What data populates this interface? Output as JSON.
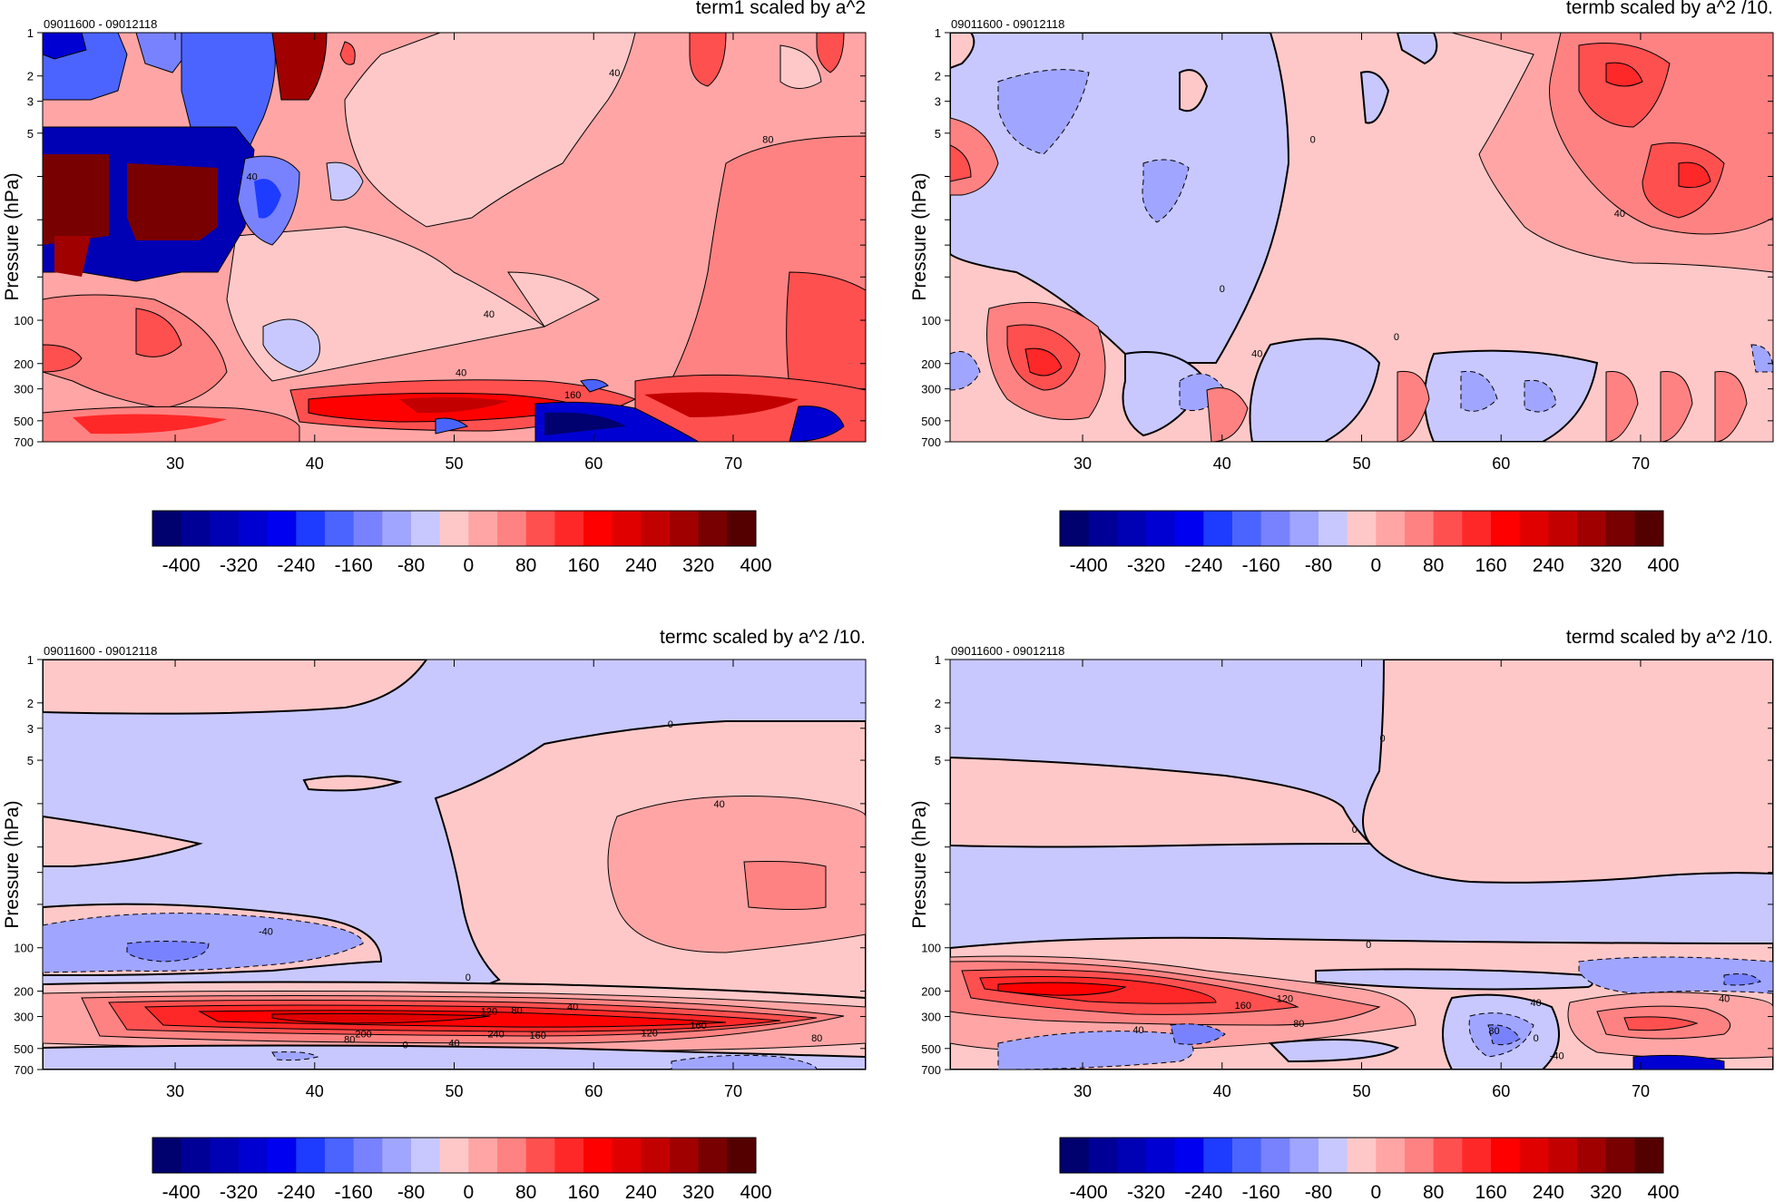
{
  "figure": {
    "colorbar_colors": [
      "#00006e",
      "#000096",
      "#0000b4",
      "#0000d2",
      "#0000f0",
      "#1e3cff",
      "#4b64ff",
      "#7882ff",
      "#a0a5ff",
      "#c8c8ff",
      "#ffc8c8",
      "#ffa5a5",
      "#ff8282",
      "#ff5050",
      "#ff2828",
      "#ff0000",
      "#e10000",
      "#c30000",
      "#a00000",
      "#780000",
      "#550000"
    ],
    "colorbar_ticks": [
      "-400",
      "-320",
      "-240",
      "-160",
      "-80",
      "0",
      "80",
      "160",
      "240",
      "320",
      "400"
    ]
  },
  "chart_data": [
    {
      "type": "heatmap",
      "title": "term1 scaled by a^2",
      "subtitle": "09011600 - 09012118",
      "ylabel": "Pressure (hPa)",
      "xlabel": "",
      "x_ticks": [
        "30",
        "40",
        "50",
        "60",
        "70"
      ],
      "y_ticks": [
        "1",
        "2",
        "3",
        "5",
        "10",
        "20",
        "30",
        "50",
        "100",
        "200",
        "300",
        "500",
        "700"
      ],
      "y_tick_labels": [
        "1",
        "2",
        "3",
        "5",
        "",
        "",
        "",
        "",
        "100",
        "200",
        "300",
        "500",
        "700"
      ],
      "xlim": [
        20.5,
        79.5
      ],
      "ylim": [
        1,
        700
      ],
      "y_scale": "log",
      "contour_labels": [
        {
          "text": "40",
          "x": 61.5,
          "p": 1.9
        },
        {
          "text": "80",
          "x": 72.5,
          "p": 5.5
        },
        {
          "text": "40",
          "x": 35.5,
          "p": 10
        },
        {
          "text": "40",
          "x": 52.5,
          "p": 90
        },
        {
          "text": "40",
          "x": 50.5,
          "p": 230
        },
        {
          "text": "160",
          "x": 58.5,
          "p": 330
        }
      ]
    },
    {
      "type": "heatmap",
      "title": "termb scaled by a^2 /10.",
      "subtitle": "09011600 - 09012118",
      "ylabel": "Pressure (hPa)",
      "xlabel": "",
      "x_ticks": [
        "30",
        "40",
        "50",
        "60",
        "70"
      ],
      "y_ticks": [
        "1",
        "2",
        "3",
        "5",
        "10",
        "20",
        "30",
        "50",
        "100",
        "200",
        "300",
        "500",
        "700"
      ],
      "y_tick_labels": [
        "1",
        "2",
        "3",
        "5",
        "",
        "",
        "",
        "",
        "100",
        "200",
        "300",
        "500",
        "700"
      ],
      "xlim": [
        20.5,
        79.5
      ],
      "ylim": [
        1,
        700
      ],
      "y_scale": "log",
      "contour_labels": [
        {
          "text": "0",
          "x": 46.5,
          "p": 5.5
        },
        {
          "text": "40",
          "x": 68.5,
          "p": 18
        },
        {
          "text": "0",
          "x": 40.0,
          "p": 60
        },
        {
          "text": "40",
          "x": 42.5,
          "p": 170
        },
        {
          "text": "0",
          "x": 52.5,
          "p": 130
        }
      ]
    },
    {
      "type": "heatmap",
      "title": "termc scaled by a^2 /10.",
      "subtitle": "09011600 - 09012118",
      "ylabel": "Pressure (hPa)",
      "xlabel": "",
      "x_ticks": [
        "30",
        "40",
        "50",
        "60",
        "70"
      ],
      "y_ticks": [
        "1",
        "2",
        "3",
        "5",
        "10",
        "20",
        "30",
        "50",
        "100",
        "200",
        "300",
        "500",
        "700"
      ],
      "y_tick_labels": [
        "1",
        "2",
        "3",
        "5",
        "",
        "",
        "",
        "",
        "100",
        "200",
        "300",
        "500",
        "700"
      ],
      "xlim": [
        20.5,
        79.5
      ],
      "ylim": [
        1,
        700
      ],
      "y_scale": "log",
      "contour_labels": [
        {
          "text": "0",
          "x": 65.5,
          "p": 2.8
        },
        {
          "text": "40",
          "x": 69.0,
          "p": 10
        },
        {
          "text": "-40",
          "x": 36.5,
          "p": 77
        },
        {
          "text": "0",
          "x": 51.0,
          "p": 160
        },
        {
          "text": "40",
          "x": 58.5,
          "p": 255
        },
        {
          "text": "80",
          "x": 54.5,
          "p": 270
        },
        {
          "text": "120",
          "x": 52.5,
          "p": 275
        },
        {
          "text": "160",
          "x": 67.5,
          "p": 345
        },
        {
          "text": "200",
          "x": 43.5,
          "p": 395
        },
        {
          "text": "240",
          "x": 53.0,
          "p": 395
        },
        {
          "text": "160",
          "x": 56.0,
          "p": 405
        },
        {
          "text": "120",
          "x": 64.0,
          "p": 390
        },
        {
          "text": "80",
          "x": 76.0,
          "p": 420
        },
        {
          "text": "80",
          "x": 42.5,
          "p": 430
        },
        {
          "text": "40",
          "x": 50.0,
          "p": 455
        },
        {
          "text": "0",
          "x": 46.5,
          "p": 470
        }
      ]
    },
    {
      "type": "heatmap",
      "title": "termd scaled by a^2 /10.",
      "subtitle": "09011600 - 09012118",
      "ylabel": "Pressure (hPa)",
      "xlabel": "",
      "x_ticks": [
        "30",
        "40",
        "50",
        "60",
        "70"
      ],
      "y_ticks": [
        "1",
        "2",
        "3",
        "5",
        "10",
        "20",
        "30",
        "50",
        "100",
        "200",
        "300",
        "500",
        "700"
      ],
      "y_tick_labels": [
        "1",
        "2",
        "3",
        "5",
        "",
        "",
        "",
        "",
        "100",
        "200",
        "300",
        "500",
        "700"
      ],
      "xlim": [
        20.5,
        79.5
      ],
      "ylim": [
        1,
        700
      ],
      "y_scale": "log",
      "contour_labels": [
        {
          "text": "0",
          "x": 51.5,
          "p": 3.5
        },
        {
          "text": "0",
          "x": 49.5,
          "p": 15
        },
        {
          "text": "0",
          "x": 50.5,
          "p": 95
        },
        {
          "text": "120",
          "x": 44.5,
          "p": 225
        },
        {
          "text": "160",
          "x": 41.5,
          "p": 250
        },
        {
          "text": "40",
          "x": 62.5,
          "p": 240
        },
        {
          "text": "80",
          "x": 45.5,
          "p": 335
        },
        {
          "text": "40",
          "x": 34.0,
          "p": 370
        },
        {
          "text": "80",
          "x": 59.5,
          "p": 375
        },
        {
          "text": "0",
          "x": 62.5,
          "p": 420
        },
        {
          "text": "40",
          "x": 76.0,
          "p": 225
        },
        {
          "text": "-40",
          "x": 64.0,
          "p": 560
        }
      ]
    }
  ]
}
